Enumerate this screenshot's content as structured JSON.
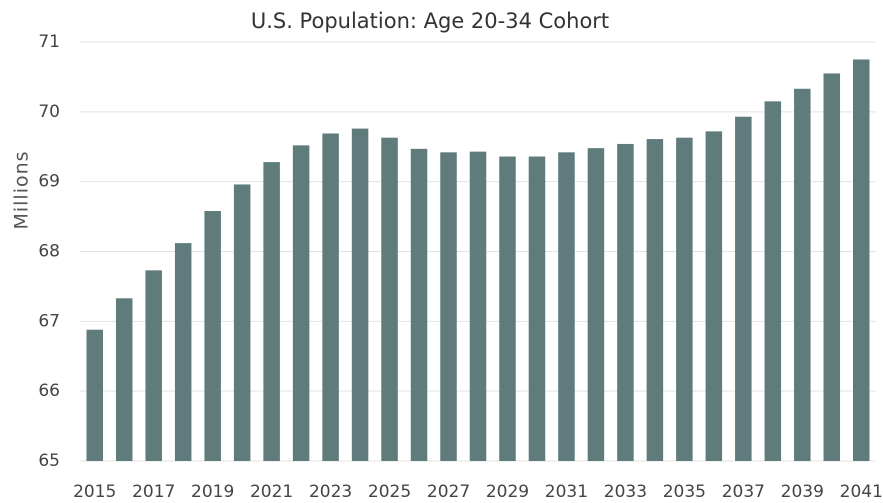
{
  "chart_data": {
    "type": "bar",
    "title": "U.S. Population: Age 20-34 Cohort",
    "y_label": "Millions",
    "categories": [
      "2015",
      null,
      "2017",
      null,
      "2019",
      null,
      "2021",
      null,
      "2023",
      null,
      "2025",
      null,
      "2027",
      null,
      "2029",
      null,
      "2031",
      null,
      "2033",
      null,
      "2035",
      null,
      "2037",
      null,
      "2039",
      null,
      "2041"
    ],
    "values": [
      66.88,
      67.33,
      67.73,
      68.12,
      68.58,
      68.96,
      69.28,
      69.52,
      69.69,
      69.76,
      69.63,
      69.47,
      69.42,
      69.43,
      69.36,
      69.36,
      69.42,
      69.48,
      69.54,
      69.61,
      69.63,
      69.72,
      69.93,
      70.15,
      70.33,
      70.55,
      70.75
    ],
    "color": "#5f7b7c",
    "ylim": [
      65,
      71
    ],
    "yticks": [
      65,
      66,
      67,
      68,
      69,
      70,
      71
    ],
    "grid": true
  }
}
